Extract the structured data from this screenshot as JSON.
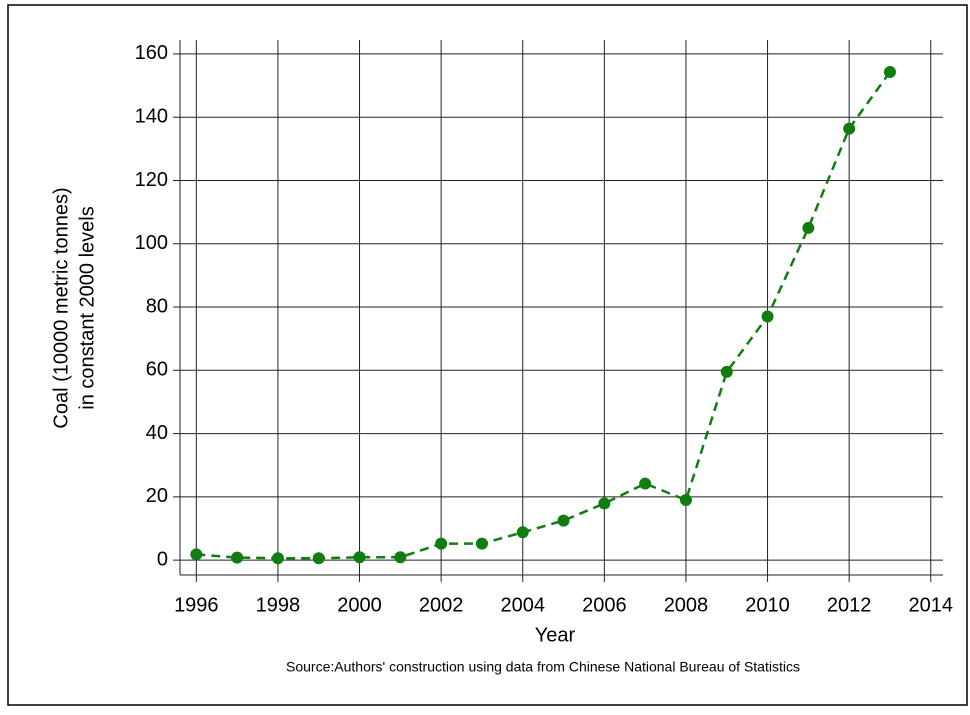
{
  "chart_data": {
    "type": "line",
    "ylabel": [
      "Coal (10000 metric tonnes)",
      "in constant 2000 levels"
    ],
    "xlabel": "Year",
    "note": "Source:Authors' construction using data from Chinese National Bureau of Statistics",
    "x": [
      1996,
      1997,
      1998,
      1999,
      2000,
      2001,
      2002,
      2003,
      2004,
      2005,
      2006,
      2007,
      2008,
      2009,
      2010,
      2011,
      2012,
      2013
    ],
    "series": [
      {
        "color": "#117d11",
        "values": [
          1.8,
          0.8,
          0.6,
          0.6,
          0.9,
          0.9,
          5.2,
          5.2,
          8.8,
          12.5,
          17.9,
          24.2,
          19,
          59.5,
          77,
          105,
          136.4,
          154.3
        ]
      }
    ],
    "xlim": [
      1995.6,
      2014.3
    ],
    "xticks": [
      1996,
      1998,
      2000,
      2002,
      2004,
      2006,
      2008,
      2010,
      2012,
      2014
    ],
    "ylim": [
      -4.7,
      164.4
    ],
    "yticks": [
      0,
      20,
      40,
      60,
      80,
      100,
      120,
      140,
      160
    ],
    "grid": true,
    "line_style": "dashed"
  }
}
